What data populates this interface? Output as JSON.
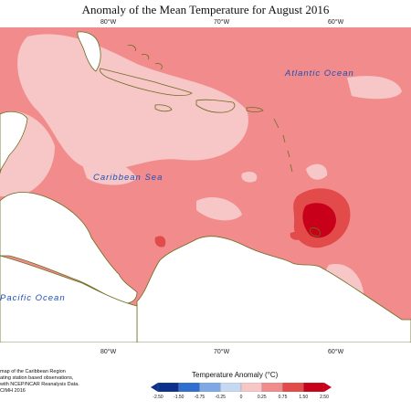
{
  "title": "Anomaly of the Mean Temperature for August 2016",
  "longitudes_top": [
    "80°W",
    "70°W",
    "60°W"
  ],
  "longitudes_bottom": [
    "80°W",
    "70°W",
    "60°W"
  ],
  "labels": {
    "atlantic": "Atlantic Ocean",
    "caribbean": "Caribbean Sea",
    "pacific": "Pacific Ocean"
  },
  "credits": [
    "map of the Caribbean Region",
    "ating station based observations,",
    "with NCEP/NCAR Reanalysis Data.",
    "CIMH 2016"
  ],
  "legend": {
    "title": "Temperature Anomaly (°C)",
    "ticks": [
      "-2.50",
      "-1.50",
      "-0.75",
      "-0.25",
      "0",
      "0.25",
      "0.75",
      "1.50",
      "2.50"
    ],
    "colors": [
      "#0b2f8a",
      "#2f6ed0",
      "#7fa9e6",
      "#c6d8f2",
      "#ffffff",
      "#f7c6c6",
      "#f28c8c",
      "#e34a4a",
      "#c8001a"
    ]
  },
  "colors": {
    "sea_base": "#f28c8c",
    "weak_anomaly": "#f7c6c6",
    "strong_anomaly": "#e34a4a",
    "hot_core": "#c8001a",
    "coast": "#6b6b1e"
  }
}
